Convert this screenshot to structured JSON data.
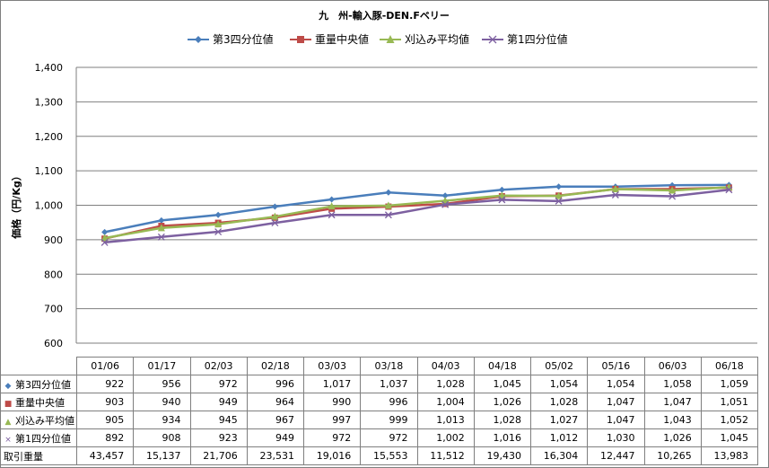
{
  "chart_data": {
    "type": "line",
    "title": "九　州-輸入豚-DEN.Fベリー",
    "ylabel": "価格（円/Kg）",
    "xlabel": "",
    "ylim": [
      600,
      1400
    ],
    "yticks": [
      "600",
      "700",
      "800",
      "900",
      "1,000",
      "1,100",
      "1,200",
      "1,300",
      "1,400"
    ],
    "categories": [
      "01/06",
      "01/17",
      "02/03",
      "02/18",
      "03/03",
      "03/18",
      "04/03",
      "04/18",
      "05/02",
      "05/16",
      "06/03",
      "06/18"
    ],
    "grid": true,
    "legend_position": "top",
    "series": [
      {
        "name": "第3四分位値",
        "color": "#4a7ebb",
        "marker": "diamond",
        "values": [
          922,
          956,
          972,
          996,
          1017,
          1037,
          1028,
          1045,
          1054,
          1054,
          1058,
          1059
        ],
        "labels": [
          "922",
          "956",
          "972",
          "996",
          "1,017",
          "1,037",
          "1,028",
          "1,045",
          "1,054",
          "1,054",
          "1,058",
          "1,059"
        ]
      },
      {
        "name": "重量中央値",
        "color": "#be4b48",
        "marker": "square",
        "values": [
          903,
          940,
          949,
          964,
          990,
          996,
          1004,
          1026,
          1028,
          1047,
          1047,
          1051
        ],
        "labels": [
          "903",
          "940",
          "949",
          "964",
          "990",
          "996",
          "1,004",
          "1,026",
          "1,028",
          "1,047",
          "1,047",
          "1,051"
        ]
      },
      {
        "name": "刈込み平均値",
        "color": "#98b954",
        "marker": "triangle",
        "values": [
          905,
          934,
          945,
          967,
          997,
          999,
          1013,
          1028,
          1027,
          1047,
          1043,
          1052
        ],
        "labels": [
          "905",
          "934",
          "945",
          "967",
          "997",
          "999",
          "1,013",
          "1,028",
          "1,027",
          "1,047",
          "1,043",
          "1,052"
        ]
      },
      {
        "name": "第1四分位値",
        "color": "#7d60a0",
        "marker": "x",
        "values": [
          892,
          908,
          923,
          949,
          972,
          972,
          1002,
          1016,
          1012,
          1030,
          1026,
          1045
        ],
        "labels": [
          "892",
          "908",
          "923",
          "949",
          "972",
          "972",
          "1,002",
          "1,016",
          "1,012",
          "1,030",
          "1,026",
          "1,045"
        ]
      }
    ],
    "volume": {
      "name": "取引重量",
      "values": [
        43457,
        15137,
        21706,
        23531,
        19016,
        15553,
        11512,
        19430,
        16304,
        12447,
        10265,
        13983
      ],
      "labels": [
        "43,457",
        "15,137",
        "21,706",
        "23,531",
        "19,016",
        "15,553",
        "11,512",
        "19,430",
        "16,304",
        "12,447",
        "10,265",
        "13,983"
      ]
    }
  }
}
